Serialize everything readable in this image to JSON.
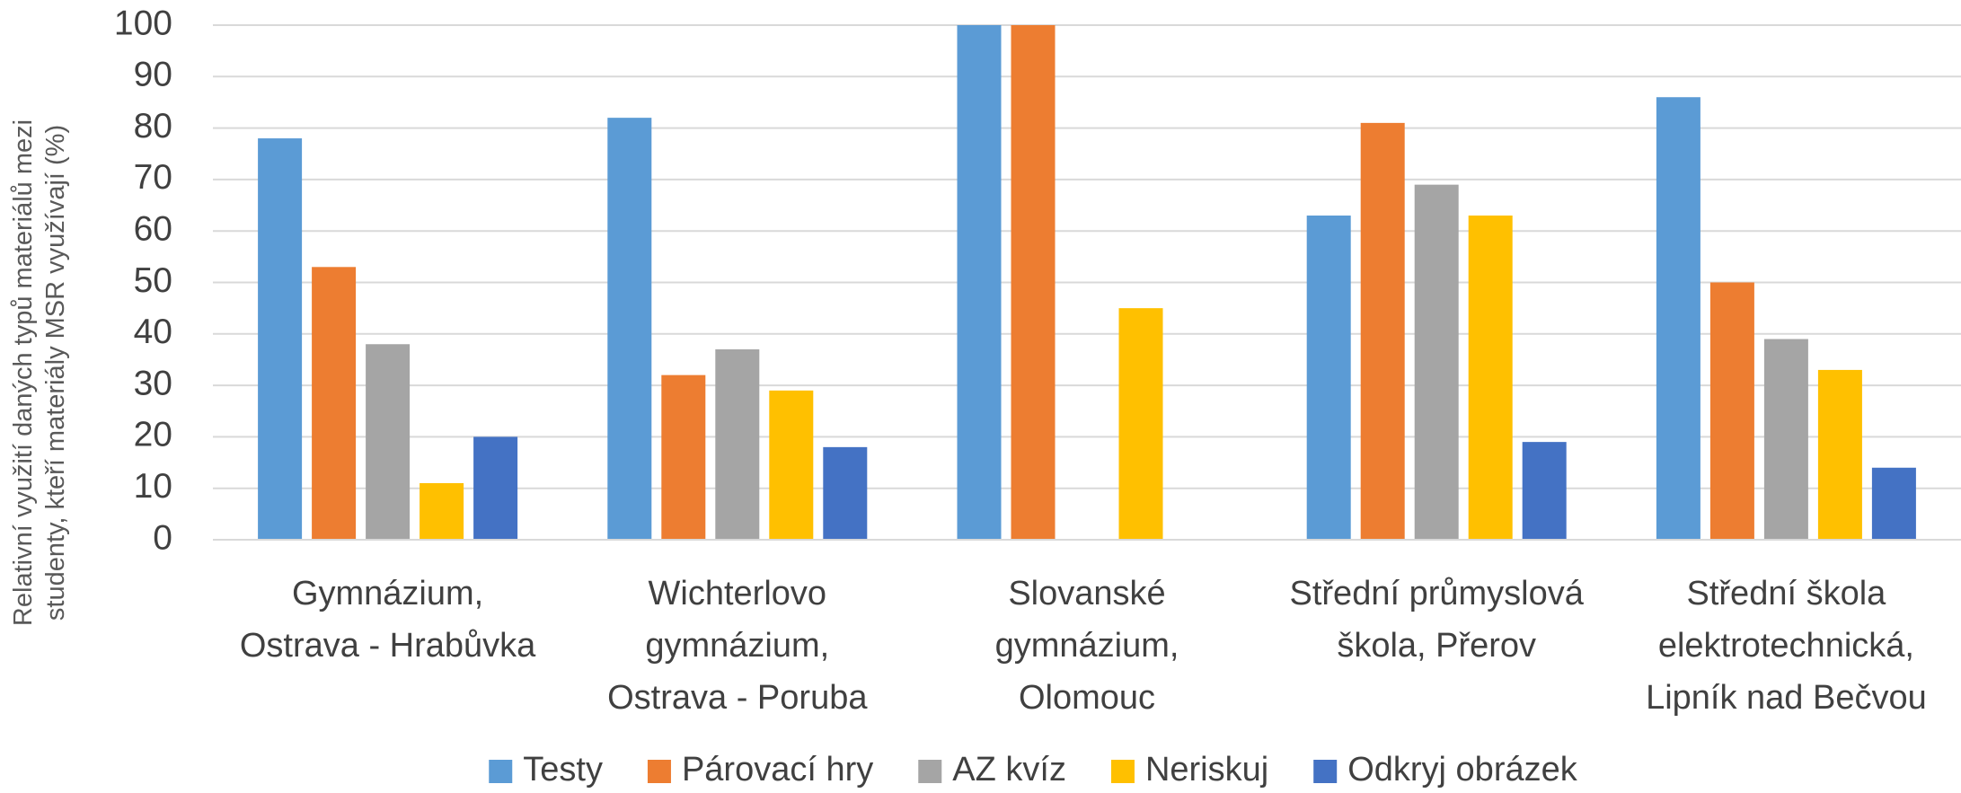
{
  "chart_data": {
    "type": "bar",
    "y_label": "Relativní využití daných typů materiálů mezi\nstudenty, kteří materiály MSR využívají (%)",
    "categories": [
      "Gymnázium,\nOstrava - Hrabůvka",
      "Wichterlovo\ngymnázium,\nOstrava - Poruba",
      "Slovanské\ngymnázium,\nOlomouc",
      "Střední průmyslová\nškola, Přerov",
      "Střední škola\nelektrotechnická,\nLipník nad Bečvou"
    ],
    "series": [
      {
        "name": "Testy",
        "color": "#5b9bd5",
        "values": [
          78,
          82,
          100,
          63,
          86
        ]
      },
      {
        "name": "Párovací hry",
        "color": "#ed7d31",
        "values": [
          53,
          32,
          100,
          81,
          50
        ]
      },
      {
        "name": "AZ kvíz",
        "color": "#a5a5a5",
        "values": [
          38,
          37,
          0,
          69,
          39
        ]
      },
      {
        "name": "Neriskuj",
        "color": "#ffc000",
        "values": [
          11,
          29,
          45,
          63,
          33
        ]
      },
      {
        "name": "Odkryj obrázek",
        "color": "#4472c4",
        "values": [
          20,
          18,
          0,
          19,
          14
        ]
      }
    ],
    "ylim": [
      0,
      100
    ],
    "yticks": [
      0,
      10,
      20,
      30,
      40,
      50,
      60,
      70,
      80,
      90,
      100
    ],
    "grid": true,
    "legend": "bottom"
  }
}
